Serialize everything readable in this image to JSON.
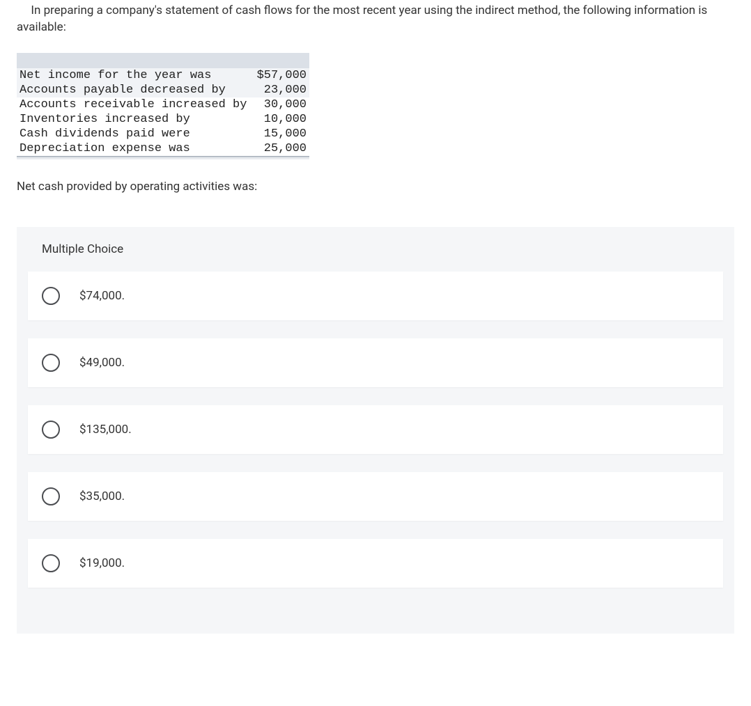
{
  "question": {
    "intro": "In preparing a company's statement of cash flows for the most recent year using the indirect method, the following information is available:",
    "prompt": "Net cash provided by operating activities was:"
  },
  "table": {
    "font_family": "Courier New",
    "header_bg": "#dbe0e7",
    "shaded_bg": "#f1f3f6",
    "rows": [
      {
        "label": "Net income for the year was",
        "value": "$57,000",
        "shaded": true
      },
      {
        "label": "Accounts payable decreased by",
        "value": "23,000",
        "shaded": true
      },
      {
        "label": "Accounts receivable increased by",
        "value": "30,000",
        "shaded": false
      },
      {
        "label": "Inventories increased by",
        "value": "10,000",
        "shaded": false
      },
      {
        "label": "Cash dividends paid were",
        "value": "15,000",
        "shaded": false
      },
      {
        "label": "Depreciation expense was",
        "value": "25,000",
        "shaded": false
      }
    ]
  },
  "mc": {
    "title": "Multiple Choice",
    "container_bg": "#f5f6f8",
    "option_bg": "#ffffff",
    "radio_border": "#4b4d51",
    "options": [
      {
        "label": "$74,000."
      },
      {
        "label": "$49,000."
      },
      {
        "label": "$135,000."
      },
      {
        "label": "$35,000."
      },
      {
        "label": "$19,000."
      }
    ]
  }
}
